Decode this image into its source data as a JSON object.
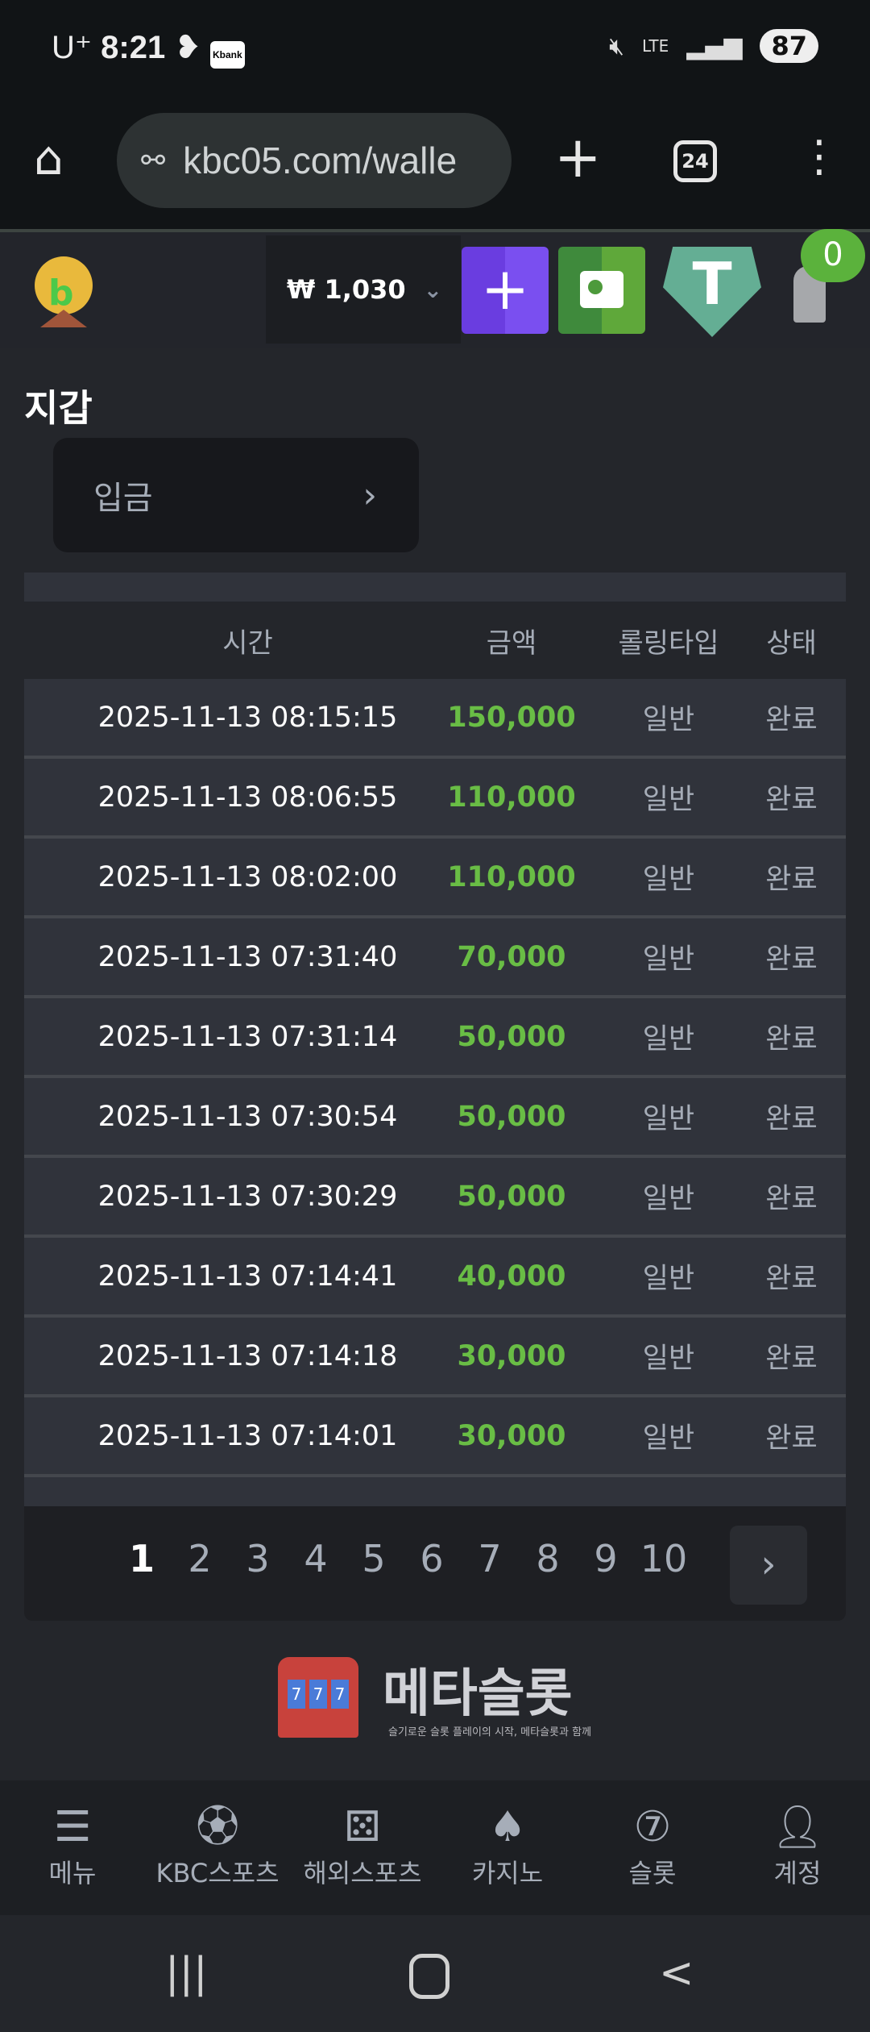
{
  "status_bar": {
    "carrier": "U⁺",
    "time": "8:21",
    "kbank": "Kbank",
    "network": "LTE",
    "battery": "87"
  },
  "browser": {
    "url": "kbc05.com/walle",
    "tab_count": "24"
  },
  "header": {
    "balance": "₩ 1,030",
    "notification_count": "0",
    "colors": {
      "deposit_btn": "#7a4ff0",
      "vault_btn": "#5fa83a",
      "tether": "#64ae94"
    }
  },
  "page": {
    "title": "지갑",
    "deposit_label": "입금"
  },
  "table": {
    "headers": [
      "시간",
      "금액",
      "롤링타입",
      "상태"
    ],
    "rows": [
      {
        "time": "2025-11-13 08:15:15",
        "amount": "150,000",
        "rolling": "일반",
        "status": "완료"
      },
      {
        "time": "2025-11-13 08:06:55",
        "amount": "110,000",
        "rolling": "일반",
        "status": "완료"
      },
      {
        "time": "2025-11-13 08:02:00",
        "amount": "110,000",
        "rolling": "일반",
        "status": "완료"
      },
      {
        "time": "2025-11-13 07:31:40",
        "amount": "70,000",
        "rolling": "일반",
        "status": "완료"
      },
      {
        "time": "2025-11-13 07:31:14",
        "amount": "50,000",
        "rolling": "일반",
        "status": "완료"
      },
      {
        "time": "2025-11-13 07:30:54",
        "amount": "50,000",
        "rolling": "일반",
        "status": "완료"
      },
      {
        "time": "2025-11-13 07:30:29",
        "amount": "50,000",
        "rolling": "일반",
        "status": "완료"
      },
      {
        "time": "2025-11-13 07:14:41",
        "amount": "40,000",
        "rolling": "일반",
        "status": "완료"
      },
      {
        "time": "2025-11-13 07:14:18",
        "amount": "30,000",
        "rolling": "일반",
        "status": "완료"
      },
      {
        "time": "2025-11-13 07:14:01",
        "amount": "30,000",
        "rolling": "일반",
        "status": "완료"
      }
    ],
    "amount_color": "#69bd45"
  },
  "pagination": {
    "pages": [
      "1",
      "2",
      "3",
      "4",
      "5",
      "6",
      "7",
      "8",
      "9",
      "10"
    ],
    "current": "1"
  },
  "watermark": {
    "title": "메타슬롯",
    "subtitle": "슬기로운 슬롯 플레이의 시작, 메타슬롯과 함께"
  },
  "bottom_nav": [
    {
      "label": "메뉴",
      "icon": "menu-search-icon"
    },
    {
      "label": "KBC스포츠",
      "icon": "soccer-ball-icon"
    },
    {
      "label": "해외스포츠",
      "icon": "dice-icon"
    },
    {
      "label": "카지노",
      "icon": "cards-icon"
    },
    {
      "label": "슬롯",
      "icon": "slot-seven-icon"
    },
    {
      "label": "계정",
      "icon": "user-coin-icon"
    }
  ]
}
